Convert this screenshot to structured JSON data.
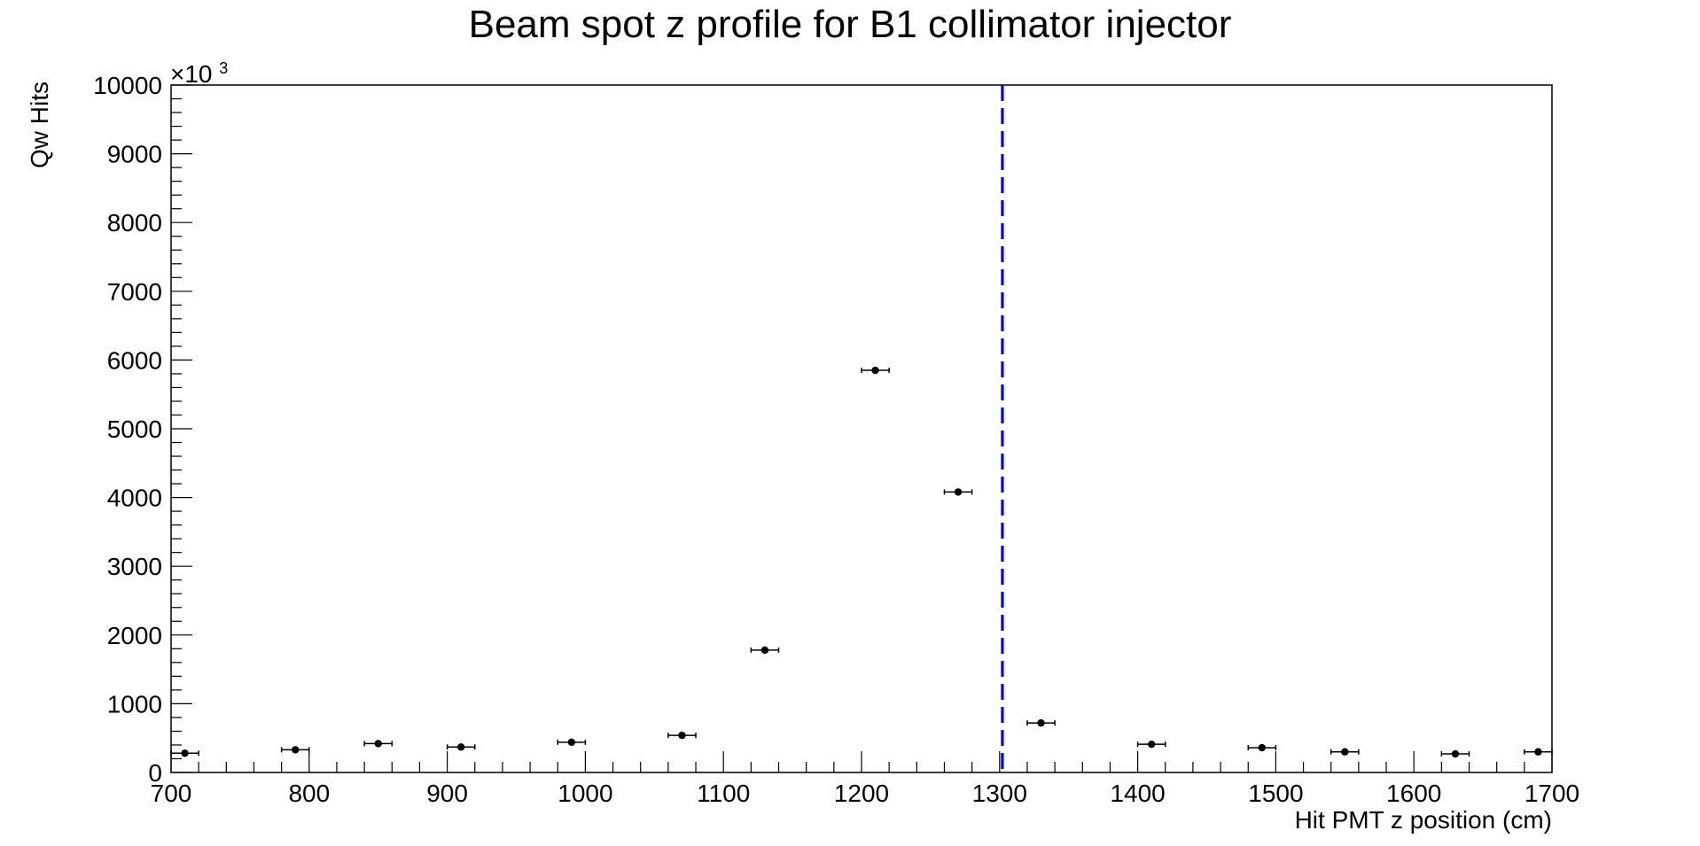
{
  "chart_data": {
    "type": "scatter",
    "title": "Beam spot z profile for B1 collimator injector",
    "xlabel": "Hit PMT z position (cm)",
    "ylabel": "Qw Hits",
    "y_multiplier_label": "×10",
    "y_multiplier_exponent": "3",
    "xlim": [
      700,
      1700
    ],
    "ylim": [
      0,
      10000
    ],
    "x_ticks": [
      700,
      800,
      900,
      1000,
      1100,
      1200,
      1300,
      1400,
      1500,
      1600,
      1700
    ],
    "y_ticks": [
      0,
      1000,
      2000,
      3000,
      4000,
      5000,
      6000,
      7000,
      8000,
      9000,
      10000
    ],
    "grid": false,
    "series": [
      {
        "marker": "circle",
        "color": "#000000",
        "points": [
          {
            "x": 710,
            "y": 280,
            "xerr": 10
          },
          {
            "x": 790,
            "y": 330,
            "xerr": 10
          },
          {
            "x": 850,
            "y": 420,
            "xerr": 10
          },
          {
            "x": 910,
            "y": 370,
            "xerr": 10
          },
          {
            "x": 990,
            "y": 440,
            "xerr": 10
          },
          {
            "x": 1070,
            "y": 540,
            "xerr": 10
          },
          {
            "x": 1130,
            "y": 1780,
            "xerr": 10
          },
          {
            "x": 1210,
            "y": 5850,
            "xerr": 10
          },
          {
            "x": 1270,
            "y": 4080,
            "xerr": 10
          },
          {
            "x": 1330,
            "y": 720,
            "xerr": 10
          },
          {
            "x": 1410,
            "y": 410,
            "xerr": 10
          },
          {
            "x": 1490,
            "y": 360,
            "xerr": 10
          },
          {
            "x": 1550,
            "y": 300,
            "xerr": 10
          },
          {
            "x": 1630,
            "y": 270,
            "xerr": 10
          },
          {
            "x": 1690,
            "y": 300,
            "xerr": 10
          }
        ]
      }
    ],
    "vertical_line": {
      "x": 1302,
      "color": "#0000ff",
      "style": "dashed"
    }
  }
}
